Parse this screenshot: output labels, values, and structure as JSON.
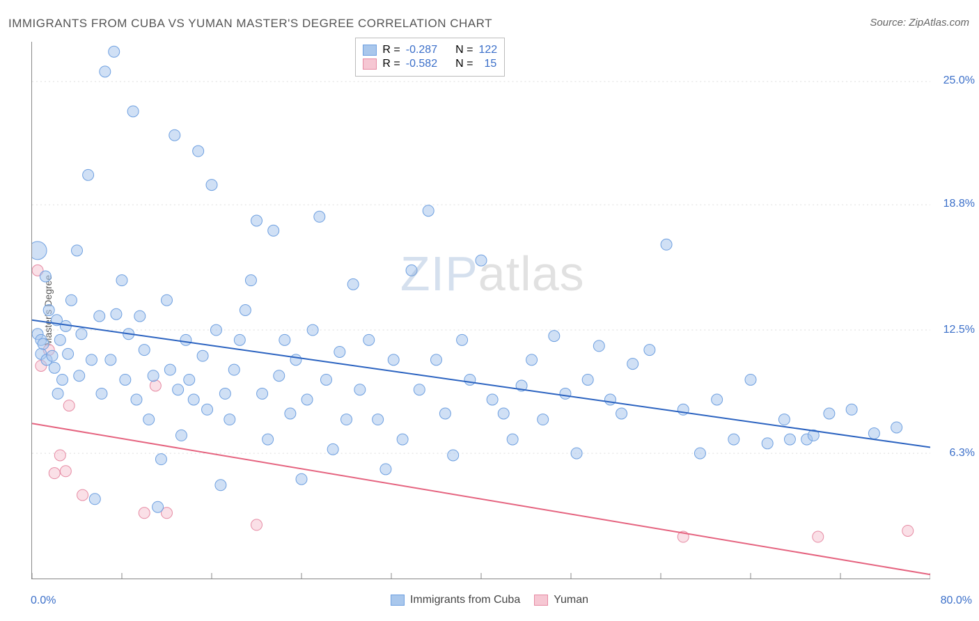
{
  "title": "IMMIGRANTS FROM CUBA VS YUMAN MASTER'S DEGREE CORRELATION CHART",
  "source_prefix": "Source: ",
  "source_name": "ZipAtlas.com",
  "y_axis_label": "Master's Degree",
  "chart": {
    "type": "scatter",
    "xlim": [
      0,
      80
    ],
    "ylim": [
      0,
      27
    ],
    "x_axis_label_min": "0.0%",
    "x_axis_label_max": "80.0%",
    "x_axis_label_color": "#3b6fc9",
    "y_gridlines": [
      {
        "value": 6.3,
        "label": "6.3%"
      },
      {
        "value": 12.5,
        "label": "12.5%"
      },
      {
        "value": 18.8,
        "label": "18.8%"
      },
      {
        "value": 25.0,
        "label": "25.0%"
      }
    ],
    "y_grid_color": "#dddddd",
    "y_label_color": "#3b6fc9",
    "x_ticks": [
      0,
      8,
      16,
      24,
      32,
      40,
      48,
      56,
      64,
      72,
      80
    ],
    "background_color": "#ffffff",
    "marker_radius": 8,
    "marker_radius_large": 13,
    "marker_opacity": 0.55,
    "trend_line_width": 2,
    "series": [
      {
        "name": "Immigrants from Cuba",
        "fill_color": "#a9c7ec",
        "stroke_color": "#6d9fe0",
        "trend_color": "#2a62c0",
        "R": "-0.287",
        "N": "122",
        "trend_line": {
          "x1": 0,
          "y1": 13.0,
          "x2": 80,
          "y2": 6.6
        },
        "points": [
          [
            0.5,
            16.5,
            13
          ],
          [
            0.5,
            12.3,
            8
          ],
          [
            0.8,
            11.3,
            8
          ],
          [
            0.8,
            12.0,
            8
          ],
          [
            1.0,
            11.8,
            8
          ],
          [
            1.2,
            15.2,
            8
          ],
          [
            1.3,
            11.0,
            8
          ],
          [
            1.5,
            13.5,
            8
          ],
          [
            1.8,
            11.2,
            8
          ],
          [
            2.0,
            10.6,
            8
          ],
          [
            2.2,
            13.0,
            8
          ],
          [
            2.3,
            9.3,
            8
          ],
          [
            2.5,
            12.0,
            8
          ],
          [
            2.7,
            10.0,
            8
          ],
          [
            3.0,
            12.7,
            8
          ],
          [
            3.2,
            11.3,
            8
          ],
          [
            3.5,
            14.0,
            8
          ],
          [
            4.0,
            16.5,
            8
          ],
          [
            4.2,
            10.2,
            8
          ],
          [
            4.4,
            12.3,
            8
          ],
          [
            5.0,
            20.3,
            8
          ],
          [
            5.3,
            11.0,
            8
          ],
          [
            5.6,
            4.0,
            8
          ],
          [
            6.0,
            13.2,
            8
          ],
          [
            6.2,
            9.3,
            8
          ],
          [
            6.5,
            25.5,
            8
          ],
          [
            7.0,
            11.0,
            8
          ],
          [
            7.3,
            26.5,
            8
          ],
          [
            7.5,
            13.3,
            8
          ],
          [
            8.0,
            15.0,
            8
          ],
          [
            8.3,
            10.0,
            8
          ],
          [
            8.6,
            12.3,
            8
          ],
          [
            9.0,
            23.5,
            8
          ],
          [
            9.3,
            9.0,
            8
          ],
          [
            9.6,
            13.2,
            8
          ],
          [
            10.0,
            11.5,
            8
          ],
          [
            10.4,
            8.0,
            8
          ],
          [
            10.8,
            10.2,
            8
          ],
          [
            11.2,
            3.6,
            8
          ],
          [
            11.5,
            6.0,
            8
          ],
          [
            12.0,
            14.0,
            8
          ],
          [
            12.3,
            10.5,
            8
          ],
          [
            12.7,
            22.3,
            8
          ],
          [
            13.0,
            9.5,
            8
          ],
          [
            13.3,
            7.2,
            8
          ],
          [
            13.7,
            12.0,
            8
          ],
          [
            14.0,
            10.0,
            8
          ],
          [
            14.4,
            9.0,
            8
          ],
          [
            14.8,
            21.5,
            8
          ],
          [
            15.2,
            11.2,
            8
          ],
          [
            15.6,
            8.5,
            8
          ],
          [
            16.0,
            19.8,
            8
          ],
          [
            16.4,
            12.5,
            8
          ],
          [
            16.8,
            4.7,
            8
          ],
          [
            17.2,
            9.3,
            8
          ],
          [
            17.6,
            8.0,
            8
          ],
          [
            18.0,
            10.5,
            8
          ],
          [
            18.5,
            12.0,
            8
          ],
          [
            19.0,
            13.5,
            8
          ],
          [
            19.5,
            15.0,
            8
          ],
          [
            20.0,
            18.0,
            8
          ],
          [
            20.5,
            9.3,
            8
          ],
          [
            21.0,
            7.0,
            8
          ],
          [
            21.5,
            17.5,
            8
          ],
          [
            22.0,
            10.2,
            8
          ],
          [
            22.5,
            12.0,
            8
          ],
          [
            23.0,
            8.3,
            8
          ],
          [
            23.5,
            11.0,
            8
          ],
          [
            24.0,
            5.0,
            8
          ],
          [
            24.5,
            9.0,
            8
          ],
          [
            25.0,
            12.5,
            8
          ],
          [
            25.6,
            18.2,
            8
          ],
          [
            26.2,
            10.0,
            8
          ],
          [
            26.8,
            6.5,
            8
          ],
          [
            27.4,
            11.4,
            8
          ],
          [
            28.0,
            8.0,
            8
          ],
          [
            28.6,
            14.8,
            8
          ],
          [
            29.2,
            9.5,
            8
          ],
          [
            30.0,
            12.0,
            8
          ],
          [
            30.8,
            8.0,
            8
          ],
          [
            31.5,
            5.5,
            8
          ],
          [
            32.2,
            11.0,
            8
          ],
          [
            33.0,
            7.0,
            8
          ],
          [
            33.8,
            15.5,
            8
          ],
          [
            34.5,
            9.5,
            8
          ],
          [
            35.3,
            18.5,
            8
          ],
          [
            36.0,
            11.0,
            8
          ],
          [
            36.8,
            8.3,
            8
          ],
          [
            37.5,
            6.2,
            8
          ],
          [
            38.3,
            12.0,
            8
          ],
          [
            39.0,
            10.0,
            8
          ],
          [
            40.0,
            16.0,
            8
          ],
          [
            41.0,
            9.0,
            8
          ],
          [
            42.0,
            8.3,
            8
          ],
          [
            42.8,
            7.0,
            8
          ],
          [
            43.6,
            9.7,
            8
          ],
          [
            44.5,
            11.0,
            8
          ],
          [
            45.5,
            8.0,
            8
          ],
          [
            46.5,
            12.2,
            8
          ],
          [
            47.5,
            9.3,
            8
          ],
          [
            48.5,
            6.3,
            8
          ],
          [
            49.5,
            10.0,
            8
          ],
          [
            50.5,
            11.7,
            8
          ],
          [
            51.5,
            9.0,
            8
          ],
          [
            52.5,
            8.3,
            8
          ],
          [
            53.5,
            10.8,
            8
          ],
          [
            55.0,
            11.5,
            8
          ],
          [
            56.5,
            16.8,
            8
          ],
          [
            58.0,
            8.5,
            8
          ],
          [
            59.5,
            6.3,
            8
          ],
          [
            61.0,
            9.0,
            8
          ],
          [
            62.5,
            7.0,
            8
          ],
          [
            64.0,
            10.0,
            8
          ],
          [
            65.5,
            6.8,
            8
          ],
          [
            67.0,
            8.0,
            8
          ],
          [
            67.5,
            7.0,
            8
          ],
          [
            69.0,
            7.0,
            8
          ],
          [
            69.6,
            7.2,
            8
          ],
          [
            71.0,
            8.3,
            8
          ],
          [
            73.0,
            8.5,
            8
          ],
          [
            75.0,
            7.3,
            8
          ],
          [
            77.0,
            7.6,
            8
          ]
        ]
      },
      {
        "name": "Yuman",
        "fill_color": "#f6c7d3",
        "stroke_color": "#e68aa3",
        "trend_color": "#e5637f",
        "R": "-0.582",
        "N": "15",
        "trend_line": {
          "x1": 0,
          "y1": 7.8,
          "x2": 80,
          "y2": 0.2
        },
        "points": [
          [
            0.5,
            15.5,
            8
          ],
          [
            0.8,
            10.7,
            8
          ],
          [
            1.5,
            11.5,
            8
          ],
          [
            2.5,
            6.2,
            8
          ],
          [
            3.0,
            5.4,
            8
          ],
          [
            3.3,
            8.7,
            8
          ],
          [
            4.5,
            4.2,
            8
          ],
          [
            10.0,
            3.3,
            8
          ],
          [
            11.0,
            9.7,
            8
          ],
          [
            12.0,
            3.3,
            8
          ],
          [
            20.0,
            2.7,
            8
          ],
          [
            58.0,
            2.1,
            8
          ],
          [
            70.0,
            2.1,
            8
          ],
          [
            78.0,
            2.4,
            8
          ],
          [
            2.0,
            5.3,
            8
          ]
        ]
      }
    ]
  },
  "legend_top": {
    "R_label": "R =",
    "N_label": "N =",
    "value_color": "#3b6fc9",
    "text_color": "#555555"
  },
  "legend_bottom": {
    "label_a": "Immigrants from Cuba",
    "label_b": "Yuman"
  },
  "watermark": {
    "zip": "ZIP",
    "atlas": "atlas"
  }
}
